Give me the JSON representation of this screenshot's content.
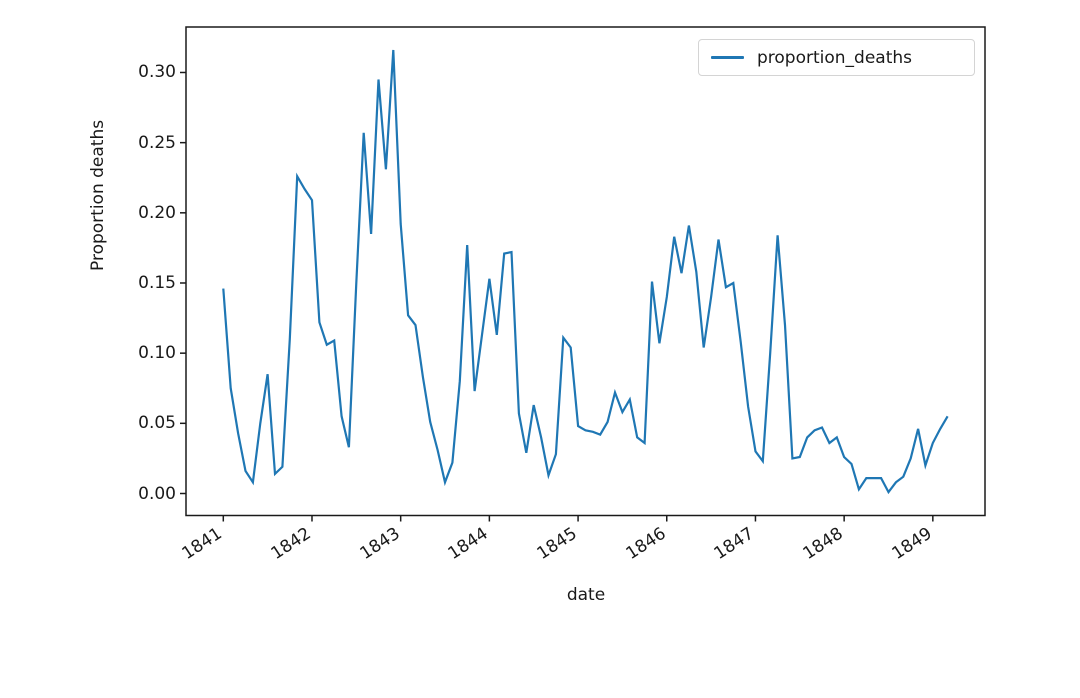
{
  "figure": {
    "background": "#ffffff"
  },
  "chart_data": {
    "type": "line",
    "title": "",
    "xlabel": "date",
    "ylabel": "Proportion deaths",
    "legend": {
      "label": "proportion_deaths",
      "position": "upper right"
    },
    "line_color": "#1f77b4",
    "axis_color": "#1a1a1a",
    "grid": false,
    "x_frequency": "monthly",
    "x_tick_labels": [
      "1841",
      "1842",
      "1843",
      "1844",
      "1845",
      "1846",
      "1847",
      "1848",
      "1849"
    ],
    "y_tick_labels": [
      "0.00",
      "0.05",
      "0.10",
      "0.15",
      "0.20",
      "0.25",
      "0.30"
    ],
    "ylim": [
      -0.014,
      0.331
    ],
    "x": [
      "1841-01",
      "1841-02",
      "1841-03",
      "1841-04",
      "1841-05",
      "1841-06",
      "1841-07",
      "1841-08",
      "1841-09",
      "1841-10",
      "1841-11",
      "1841-12",
      "1842-01",
      "1842-02",
      "1842-03",
      "1842-04",
      "1842-05",
      "1842-06",
      "1842-07",
      "1842-08",
      "1842-09",
      "1842-10",
      "1842-11",
      "1842-12",
      "1843-01",
      "1843-02",
      "1843-03",
      "1843-04",
      "1843-05",
      "1843-06",
      "1843-07",
      "1843-08",
      "1843-09",
      "1843-10",
      "1843-11",
      "1843-12",
      "1844-01",
      "1844-02",
      "1844-03",
      "1844-04",
      "1844-05",
      "1844-06",
      "1844-07",
      "1844-08",
      "1844-09",
      "1844-10",
      "1844-11",
      "1844-12",
      "1845-01",
      "1845-02",
      "1845-03",
      "1845-04",
      "1845-05",
      "1845-06",
      "1845-07",
      "1845-08",
      "1845-09",
      "1845-10",
      "1845-11",
      "1845-12",
      "1846-01",
      "1846-02",
      "1846-03",
      "1846-04",
      "1846-05",
      "1846-06",
      "1846-07",
      "1846-08",
      "1846-09",
      "1846-10",
      "1846-11",
      "1846-12",
      "1847-01",
      "1847-02",
      "1847-03",
      "1847-04",
      "1847-05",
      "1847-06",
      "1847-07",
      "1847-08",
      "1847-09",
      "1847-10",
      "1847-11",
      "1847-12",
      "1848-01",
      "1848-02",
      "1848-03",
      "1848-04",
      "1848-05",
      "1848-06",
      "1848-07",
      "1848-08",
      "1848-09",
      "1848-10",
      "1848-11",
      "1848-12",
      "1849-01",
      "1849-02",
      "1849-03"
    ],
    "series": [
      {
        "name": "proportion_deaths",
        "color": "#1f77b4",
        "values": [
          0.146,
          0.075,
          0.043,
          0.016,
          0.008,
          0.05,
          0.085,
          0.014,
          0.019,
          0.11,
          0.226,
          0.217,
          0.209,
          0.122,
          0.106,
          0.109,
          0.055,
          0.033,
          0.15,
          0.257,
          0.185,
          0.295,
          0.231,
          0.316,
          0.192,
          0.127,
          0.12,
          0.083,
          0.051,
          0.031,
          0.008,
          0.022,
          0.08,
          0.177,
          0.073,
          0.113,
          0.153,
          0.113,
          0.171,
          0.172,
          0.057,
          0.029,
          0.063,
          0.04,
          0.013,
          0.028,
          0.111,
          0.104,
          0.048,
          0.045,
          0.044,
          0.042,
          0.051,
          0.072,
          0.058,
          0.067,
          0.04,
          0.036,
          0.151,
          0.107,
          0.14,
          0.183,
          0.157,
          0.191,
          0.158,
          0.104,
          0.14,
          0.181,
          0.147,
          0.15,
          0.108,
          0.062,
          0.03,
          0.023,
          0.1,
          0.184,
          0.12,
          0.025,
          0.026,
          0.04,
          0.045,
          0.047,
          0.036,
          0.04,
          0.026,
          0.021,
          0.003,
          0.011,
          0.011,
          0.011,
          0.001,
          0.008,
          0.012,
          0.025,
          0.046,
          0.02,
          0.036,
          0.046,
          0.055
        ]
      }
    ]
  }
}
